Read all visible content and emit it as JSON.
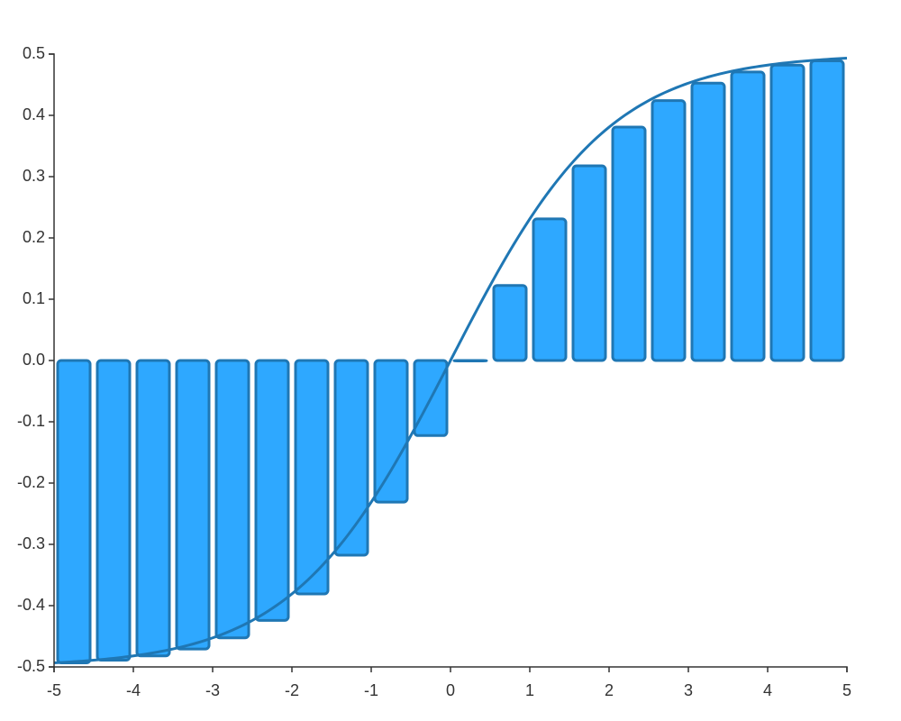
{
  "chart_data": {
    "type": "bar",
    "title": "",
    "xlabel": "",
    "ylabel": "",
    "xlim": [
      -5,
      5
    ],
    "ylim": [
      -0.5,
      0.5
    ],
    "x_ticks": [
      "-5",
      "-4",
      "-3",
      "-2",
      "-1",
      "0",
      "1",
      "2",
      "3",
      "4",
      "5"
    ],
    "y_ticks": [
      "-0.5",
      "-0.4",
      "-0.3",
      "-0.2",
      "-0.1",
      "0.0",
      "0.1",
      "0.2",
      "0.3",
      "0.4",
      "0.5"
    ],
    "grid": false,
    "bar_fill": "#2ea8ff",
    "bar_stroke": "#1f77b4",
    "line_color": "#1f77b4",
    "bars": {
      "x": [
        -4.5,
        -4,
        -3.5,
        -3,
        -2.5,
        -2,
        -1.5,
        -1,
        -0.5,
        0,
        0.5,
        1,
        1.5,
        2,
        2.5,
        3,
        3.5,
        4,
        4.5,
        5
      ],
      "values": [
        -0.4933,
        -0.489,
        -0.482,
        -0.4707,
        -0.4526,
        -0.4241,
        -0.3808,
        -0.3176,
        -0.2311,
        -0.1225,
        0.0,
        0.1225,
        0.2311,
        0.3176,
        0.3808,
        0.4241,
        0.4526,
        0.4707,
        0.482,
        0.489
      ]
    },
    "curve": {
      "type": "line",
      "function": "1/(1+e^-x) - 0.5",
      "x_range": [
        -5,
        5
      ]
    }
  }
}
